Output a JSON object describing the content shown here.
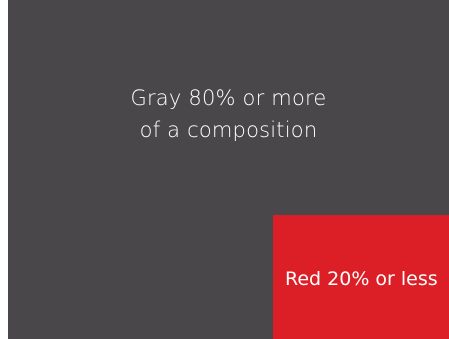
{
  "colors": {
    "gray": "#49474a",
    "red": "#dc1f26",
    "text": "#ffffff"
  },
  "gray_panel": {
    "line1": "Gray 80% or more",
    "line2": "of a composition"
  },
  "red_panel": {
    "label": "Red 20% or less"
  }
}
